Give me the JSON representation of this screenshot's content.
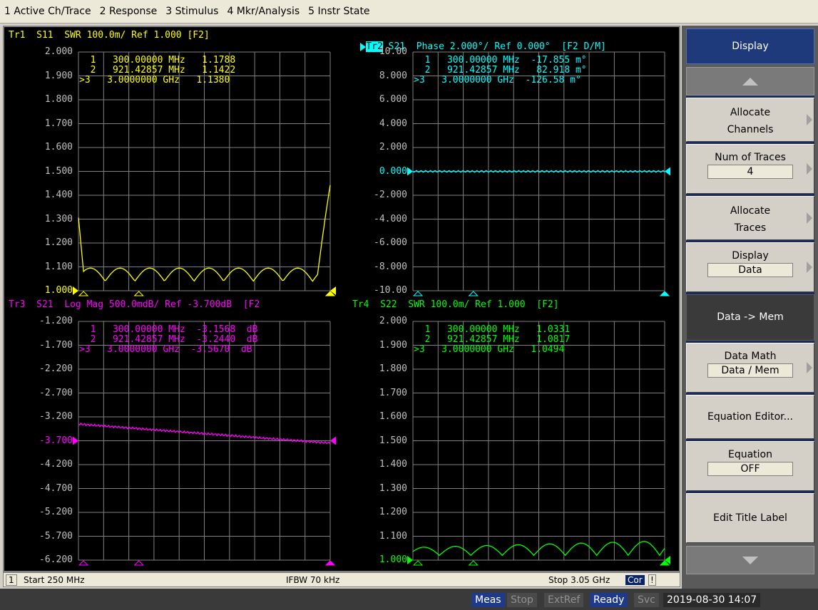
{
  "menu": [
    "1 Active Ch/Trace",
    "2 Response",
    "3 Stimulus",
    "4 Mkr/Analysis",
    "5 Instr State"
  ],
  "colors": {
    "tr1": "#ffff00",
    "tr2": "#00ffff",
    "tr3": "#ff00ff",
    "tr4": "#00ff00",
    "grid": "#808080"
  },
  "traces": {
    "tr1": {
      "header": "Tr1  S11  SWR 100.0m/ Ref 1.000 [F2]",
      "yticks": [
        "2.000",
        "1.900",
        "1.800",
        "1.700",
        "1.600",
        "1.500",
        "1.400",
        "1.300",
        "1.200",
        "1.100",
        "1.000"
      ],
      "markers": [
        "  1   300.00000 MHz   1.1788",
        "  2   921.42857 MHz   1.1422",
        ">3   3.0000000 GHz   1.1380"
      ]
    },
    "tr2": {
      "header_tag": "Tr2",
      "header": " S21  Phase 2.000°/ Ref 0.000°  [F2 D/M]",
      "yticks": [
        "10.00",
        "8.000",
        "6.000",
        "4.000",
        "2.000",
        "0.000",
        "-2.000",
        "-4.000",
        "-6.000",
        "-8.000",
        "-10.00"
      ],
      "markers": [
        "  1   300.00000 MHz  -17.855 m°",
        "  2   921.42857 MHz   82.918 m°",
        ">3   3.0000000 GHz  -126.58 m°"
      ]
    },
    "tr3": {
      "header": "Tr3  S21  Log Mag 500.0mdB/ Ref -3.700dB  [F2",
      "yticks": [
        "-1.200",
        "-1.700",
        "-2.200",
        "-2.700",
        "-3.200",
        "-3.700",
        "-4.200",
        "-4.700",
        "-5.200",
        "-5.700",
        "-6.200"
      ],
      "markers": [
        "  1   300.00000 MHz  -3.1568  dB",
        "  2   921.42857 MHz  -3.2440  dB",
        ">3   3.0000000 GHz  -3.5670  dB"
      ]
    },
    "tr4": {
      "header": "Tr4  S22  SWR 100.0m/ Ref 1.000  [F2]",
      "yticks": [
        "2.000",
        "1.900",
        "1.800",
        "1.700",
        "1.600",
        "1.500",
        "1.400",
        "1.300",
        "1.200",
        "1.100",
        "1.000"
      ],
      "markers": [
        "  1   300.00000 MHz   1.0331",
        "  2   921.42857 MHz   1.0817",
        ">3   3.0000000 GHz   1.0494"
      ]
    }
  },
  "channel": {
    "num": "1",
    "start": "Start 250 MHz",
    "ifbw": "IFBW 70 kHz",
    "stop": "Stop 3.05 GHz",
    "cor": "Cor",
    "excl": "!"
  },
  "status": {
    "meas": "Meas",
    "stop": "Stop",
    "extref": "ExtRef",
    "ready": "Ready",
    "svc": "Svc",
    "datetime": "2019-08-30 14:07"
  },
  "softkeys": {
    "title": "Display",
    "allocate_channels": [
      "Allocate",
      "Channels"
    ],
    "num_traces": {
      "label": "Num of Traces",
      "value": "4"
    },
    "allocate_traces": [
      "Allocate",
      "Traces"
    ],
    "display": {
      "label": "Display",
      "value": "Data"
    },
    "data_mem": "Data -> Mem",
    "data_math": {
      "label": "Data Math",
      "value": "Data / Mem"
    },
    "equation_editor": "Equation Editor...",
    "equation": {
      "label": "Equation",
      "value": "OFF"
    },
    "edit_title": "Edit Title Label"
  }
}
